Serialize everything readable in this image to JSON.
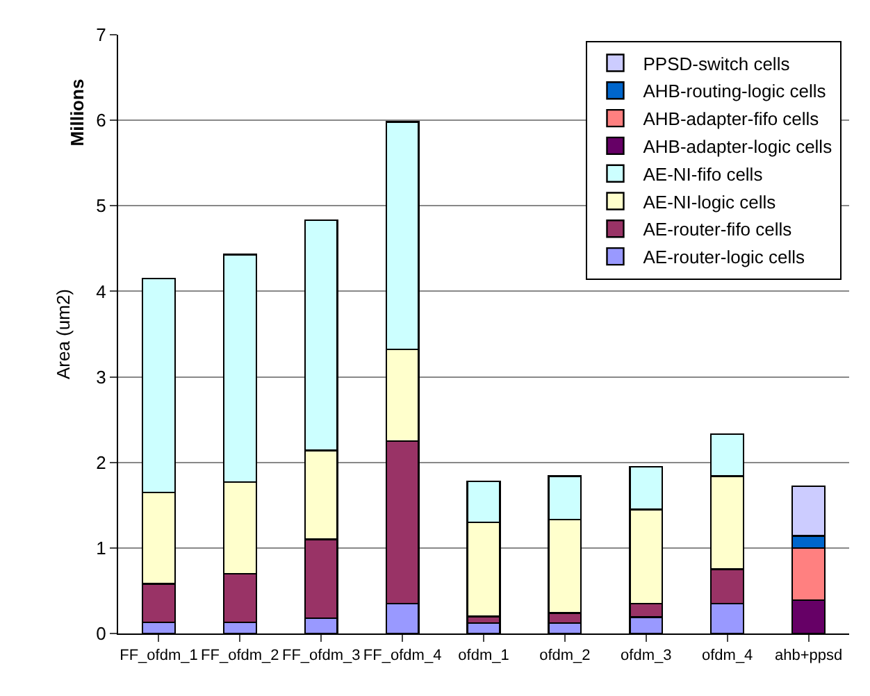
{
  "chart_data": {
    "type": "bar",
    "stacked": true,
    "ylabel": "Area (um2)",
    "annotations": [
      "Millions"
    ],
    "categories": [
      "FF_ofdm_1",
      "FF_ofdm_2",
      "FF_ofdm_3",
      "FF_ofdm_4",
      "ofdm_1",
      "ofdm_2",
      "ofdm_3",
      "ofdm_4",
      "ahb+ppsd"
    ],
    "series": [
      {
        "name": "AE-router-logic cells",
        "color": "#9999ff",
        "values": [
          0.13,
          0.13,
          0.18,
          0.35,
          0.12,
          0.12,
          0.19,
          0.35,
          null
        ]
      },
      {
        "name": "AE-router-fifo cells",
        "color": "#993366",
        "values": [
          0.45,
          0.57,
          0.92,
          1.9,
          0.08,
          0.12,
          0.16,
          0.4,
          null
        ]
      },
      {
        "name": "AE-NI-logic cells",
        "color": "#ffffcc",
        "values": [
          1.07,
          1.07,
          1.04,
          1.07,
          1.1,
          1.09,
          1.1,
          1.09,
          null
        ]
      },
      {
        "name": "AE-NI-fifo cells",
        "color": "#ccffff",
        "values": [
          2.5,
          2.66,
          2.69,
          2.66,
          0.48,
          0.51,
          0.5,
          0.49,
          null
        ]
      },
      {
        "name": "AHB-adapter-logic cells",
        "color": "#660066",
        "values": [
          null,
          null,
          null,
          null,
          null,
          null,
          null,
          null,
          0.39
        ]
      },
      {
        "name": "AHB-adapter-fifo cells",
        "color": "#ff8080",
        "values": [
          null,
          null,
          null,
          null,
          null,
          null,
          null,
          null,
          0.61
        ]
      },
      {
        "name": "AHB-routing-logic cells",
        "color": "#0066cc",
        "values": [
          null,
          null,
          null,
          null,
          null,
          null,
          null,
          null,
          0.14
        ]
      },
      {
        "name": "PPSD-switch cells",
        "color": "#ccccff",
        "values": [
          null,
          null,
          null,
          null,
          null,
          null,
          null,
          null,
          0.58
        ]
      }
    ],
    "ylim": [
      0,
      7
    ],
    "yticks": [
      0,
      1,
      2,
      3,
      4,
      5,
      6,
      7
    ],
    "grid": "y",
    "legend": "top right"
  }
}
